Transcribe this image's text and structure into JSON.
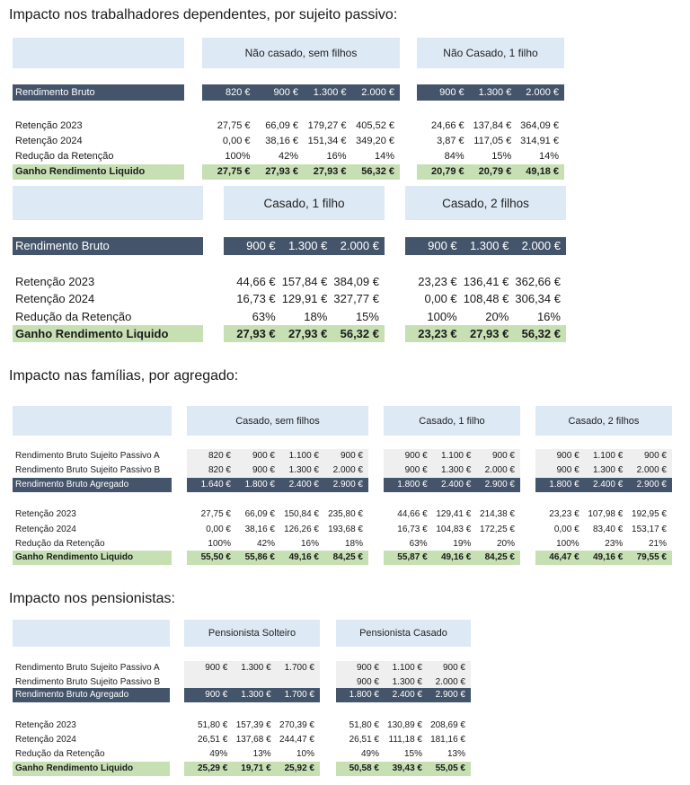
{
  "sections": [
    {
      "title": "Impacto nos trabalhadores dependentes, por sujeito passivo:"
    },
    {
      "title": "Impacto nas famílias, por agregado:"
    },
    {
      "title": "Impacto nos pensionistas:"
    }
  ],
  "colors": {
    "header": "#dde9f5",
    "dark_row": "#44546a",
    "highlight": "#c6e0b4",
    "shaded": "#efefef"
  },
  "blocks": [
    {
      "groups": [
        "Não casado, sem filhos",
        "Não Casado, 1 filho"
      ],
      "rows": [
        {
          "label": "Rendimento Bruto",
          "type": "dark",
          "values": [
            [
              "820 €",
              "900 €",
              "1.300 €",
              "2.000 €"
            ],
            [
              "900 €",
              "1.300 €",
              "2.000 €"
            ]
          ]
        },
        {
          "label": "Retenção 2023",
          "type": "plain",
          "values": [
            [
              "27,75 €",
              "66,09 €",
              "179,27 €",
              "405,52 €"
            ],
            [
              "24,66 €",
              "137,84 €",
              "364,09 €"
            ]
          ]
        },
        {
          "label": "Retenção 2024",
          "type": "plain",
          "values": [
            [
              "0,00 €",
              "38,16 €",
              "151,34 €",
              "349,20 €"
            ],
            [
              "3,87 €",
              "117,05 €",
              "314,91 €"
            ]
          ]
        },
        {
          "label": "Redução da Retenção",
          "type": "plain",
          "values": [
            [
              "100%",
              "42%",
              "16%",
              "14%"
            ],
            [
              "84%",
              "15%",
              "14%"
            ]
          ]
        },
        {
          "label": "Ganho Rendimento Liquido",
          "type": "green",
          "values": [
            [
              "27,75 €",
              "27,93 €",
              "27,93 €",
              "56,32 €"
            ],
            [
              "20,79 €",
              "20,79 €",
              "49,18 €"
            ]
          ]
        }
      ]
    },
    {
      "groups": [
        "Casado, 1 filho",
        "Casado, 2 filhos"
      ],
      "rows": [
        {
          "label": "Rendimento Bruto",
          "type": "dark",
          "values": [
            [
              "900 €",
              "1.300 €",
              "2.000 €"
            ],
            [
              "900 €",
              "1.300 €",
              "2.000 €"
            ]
          ]
        },
        {
          "label": "Retenção 2023",
          "type": "plain",
          "values": [
            [
              "44,66 €",
              "157,84 €",
              "384,09 €"
            ],
            [
              "23,23 €",
              "136,41 €",
              "362,66 €"
            ]
          ]
        },
        {
          "label": "Retenção 2024",
          "type": "plain",
          "values": [
            [
              "16,73 €",
              "129,91 €",
              "327,77 €"
            ],
            [
              "0,00 €",
              "108,48 €",
              "306,34 €"
            ]
          ]
        },
        {
          "label": "Redução da Retenção",
          "type": "plain",
          "values": [
            [
              "63%",
              "18%",
              "15%"
            ],
            [
              "100%",
              "20%",
              "16%"
            ]
          ]
        },
        {
          "label": "Ganho Rendimento Liquido",
          "type": "green",
          "values": [
            [
              "27,93 €",
              "27,93 €",
              "56,32 €"
            ],
            [
              "23,23 €",
              "27,93 €",
              "56,32 €"
            ]
          ]
        }
      ]
    },
    {
      "groups": [
        "Casado, sem filhos",
        "Casado, 1 filho",
        "Casado, 2 filhos"
      ],
      "rows": [
        {
          "label": "Rendimento Bruto Sujeito Passivo A",
          "type": "grey",
          "values": [
            [
              "820 €",
              "900 €",
              "1.100 €",
              "900 €"
            ],
            [
              "900 €",
              "1.100 €",
              "900 €"
            ],
            [
              "900 €",
              "1.100 €",
              "900 €"
            ]
          ]
        },
        {
          "label": "Rendimento Bruto Sujeito Passivo B",
          "type": "grey",
          "values": [
            [
              "820 €",
              "900 €",
              "1.300 €",
              "2.000 €"
            ],
            [
              "900 €",
              "1.300 €",
              "2.000 €"
            ],
            [
              "900 €",
              "1.300 €",
              "2.000 €"
            ]
          ]
        },
        {
          "label": "Rendimento Bruto Agregado",
          "type": "dark",
          "values": [
            [
              "1.640 €",
              "1.800 €",
              "2.400 €",
              "2.900 €"
            ],
            [
              "1.800 €",
              "2.400 €",
              "2.900 €"
            ],
            [
              "1.800 €",
              "2.400 €",
              "2.900 €"
            ]
          ]
        },
        {
          "label": "Retenção 2023",
          "type": "plain",
          "values": [
            [
              "27,75 €",
              "66,09 €",
              "150,84 €",
              "235,80 €"
            ],
            [
              "44,66 €",
              "129,41 €",
              "214,38 €"
            ],
            [
              "23,23 €",
              "107,98 €",
              "192,95 €"
            ]
          ]
        },
        {
          "label": "Retenção 2024",
          "type": "plain",
          "values": [
            [
              "0,00 €",
              "38,16 €",
              "126,26 €",
              "193,68 €"
            ],
            [
              "16,73 €",
              "104,83 €",
              "172,25 €"
            ],
            [
              "0,00 €",
              "83,40 €",
              "153,17 €"
            ]
          ]
        },
        {
          "label": "Redução da Retenção",
          "type": "plain",
          "values": [
            [
              "100%",
              "42%",
              "16%",
              "18%"
            ],
            [
              "63%",
              "19%",
              "20%"
            ],
            [
              "100%",
              "23%",
              "21%"
            ]
          ]
        },
        {
          "label": "Ganho Rendimento Liquido",
          "type": "green",
          "values": [
            [
              "55,50 €",
              "55,86 €",
              "49,16 €",
              "84,25 €"
            ],
            [
              "55,87 €",
              "49,16 €",
              "84,25 €"
            ],
            [
              "46,47 €",
              "49,16 €",
              "79,55 €"
            ]
          ]
        }
      ]
    },
    {
      "groups": [
        "Pensionista Solteiro",
        "Pensionista Casado"
      ],
      "rows": [
        {
          "label": "Rendimento Bruto Sujeito Passivo A",
          "type": "grey",
          "values": [
            [
              "900 €",
              "1.300 €",
              "1.700 €"
            ],
            [
              "900 €",
              "1.100 €",
              "900 €"
            ]
          ]
        },
        {
          "label": "Rendimento Bruto Sujeito Passivo B",
          "type": "grey",
          "values": [
            [
              "",
              "",
              ""
            ],
            [
              "900 €",
              "1.300 €",
              "2.000 €"
            ]
          ]
        },
        {
          "label": "Rendimento Bruto Agregado",
          "type": "dark",
          "values": [
            [
              "900 €",
              "1.300 €",
              "1.700 €"
            ],
            [
              "1.800 €",
              "2.400 €",
              "2.900 €"
            ]
          ]
        },
        {
          "label": "Retenção 2023",
          "type": "plain",
          "values": [
            [
              "51,80 €",
              "157,39 €",
              "270,39 €"
            ],
            [
              "51,80 €",
              "130,89 €",
              "208,69 €"
            ]
          ]
        },
        {
          "label": "Retenção 2024",
          "type": "plain",
          "values": [
            [
              "26,51 €",
              "137,68 €",
              "244,47 €"
            ],
            [
              "26,51 €",
              "111,18 €",
              "181,16 €"
            ]
          ]
        },
        {
          "label": "Redução da Retenção",
          "type": "plain",
          "values": [
            [
              "49%",
              "13%",
              "10%"
            ],
            [
              "49%",
              "15%",
              "13%"
            ]
          ]
        },
        {
          "label": "Ganho Rendimento Liquido",
          "type": "green",
          "values": [
            [
              "25,29 €",
              "19,71 €",
              "25,92 €"
            ],
            [
              "50,58 €",
              "39,43 €",
              "55,05 €"
            ]
          ]
        }
      ]
    }
  ]
}
